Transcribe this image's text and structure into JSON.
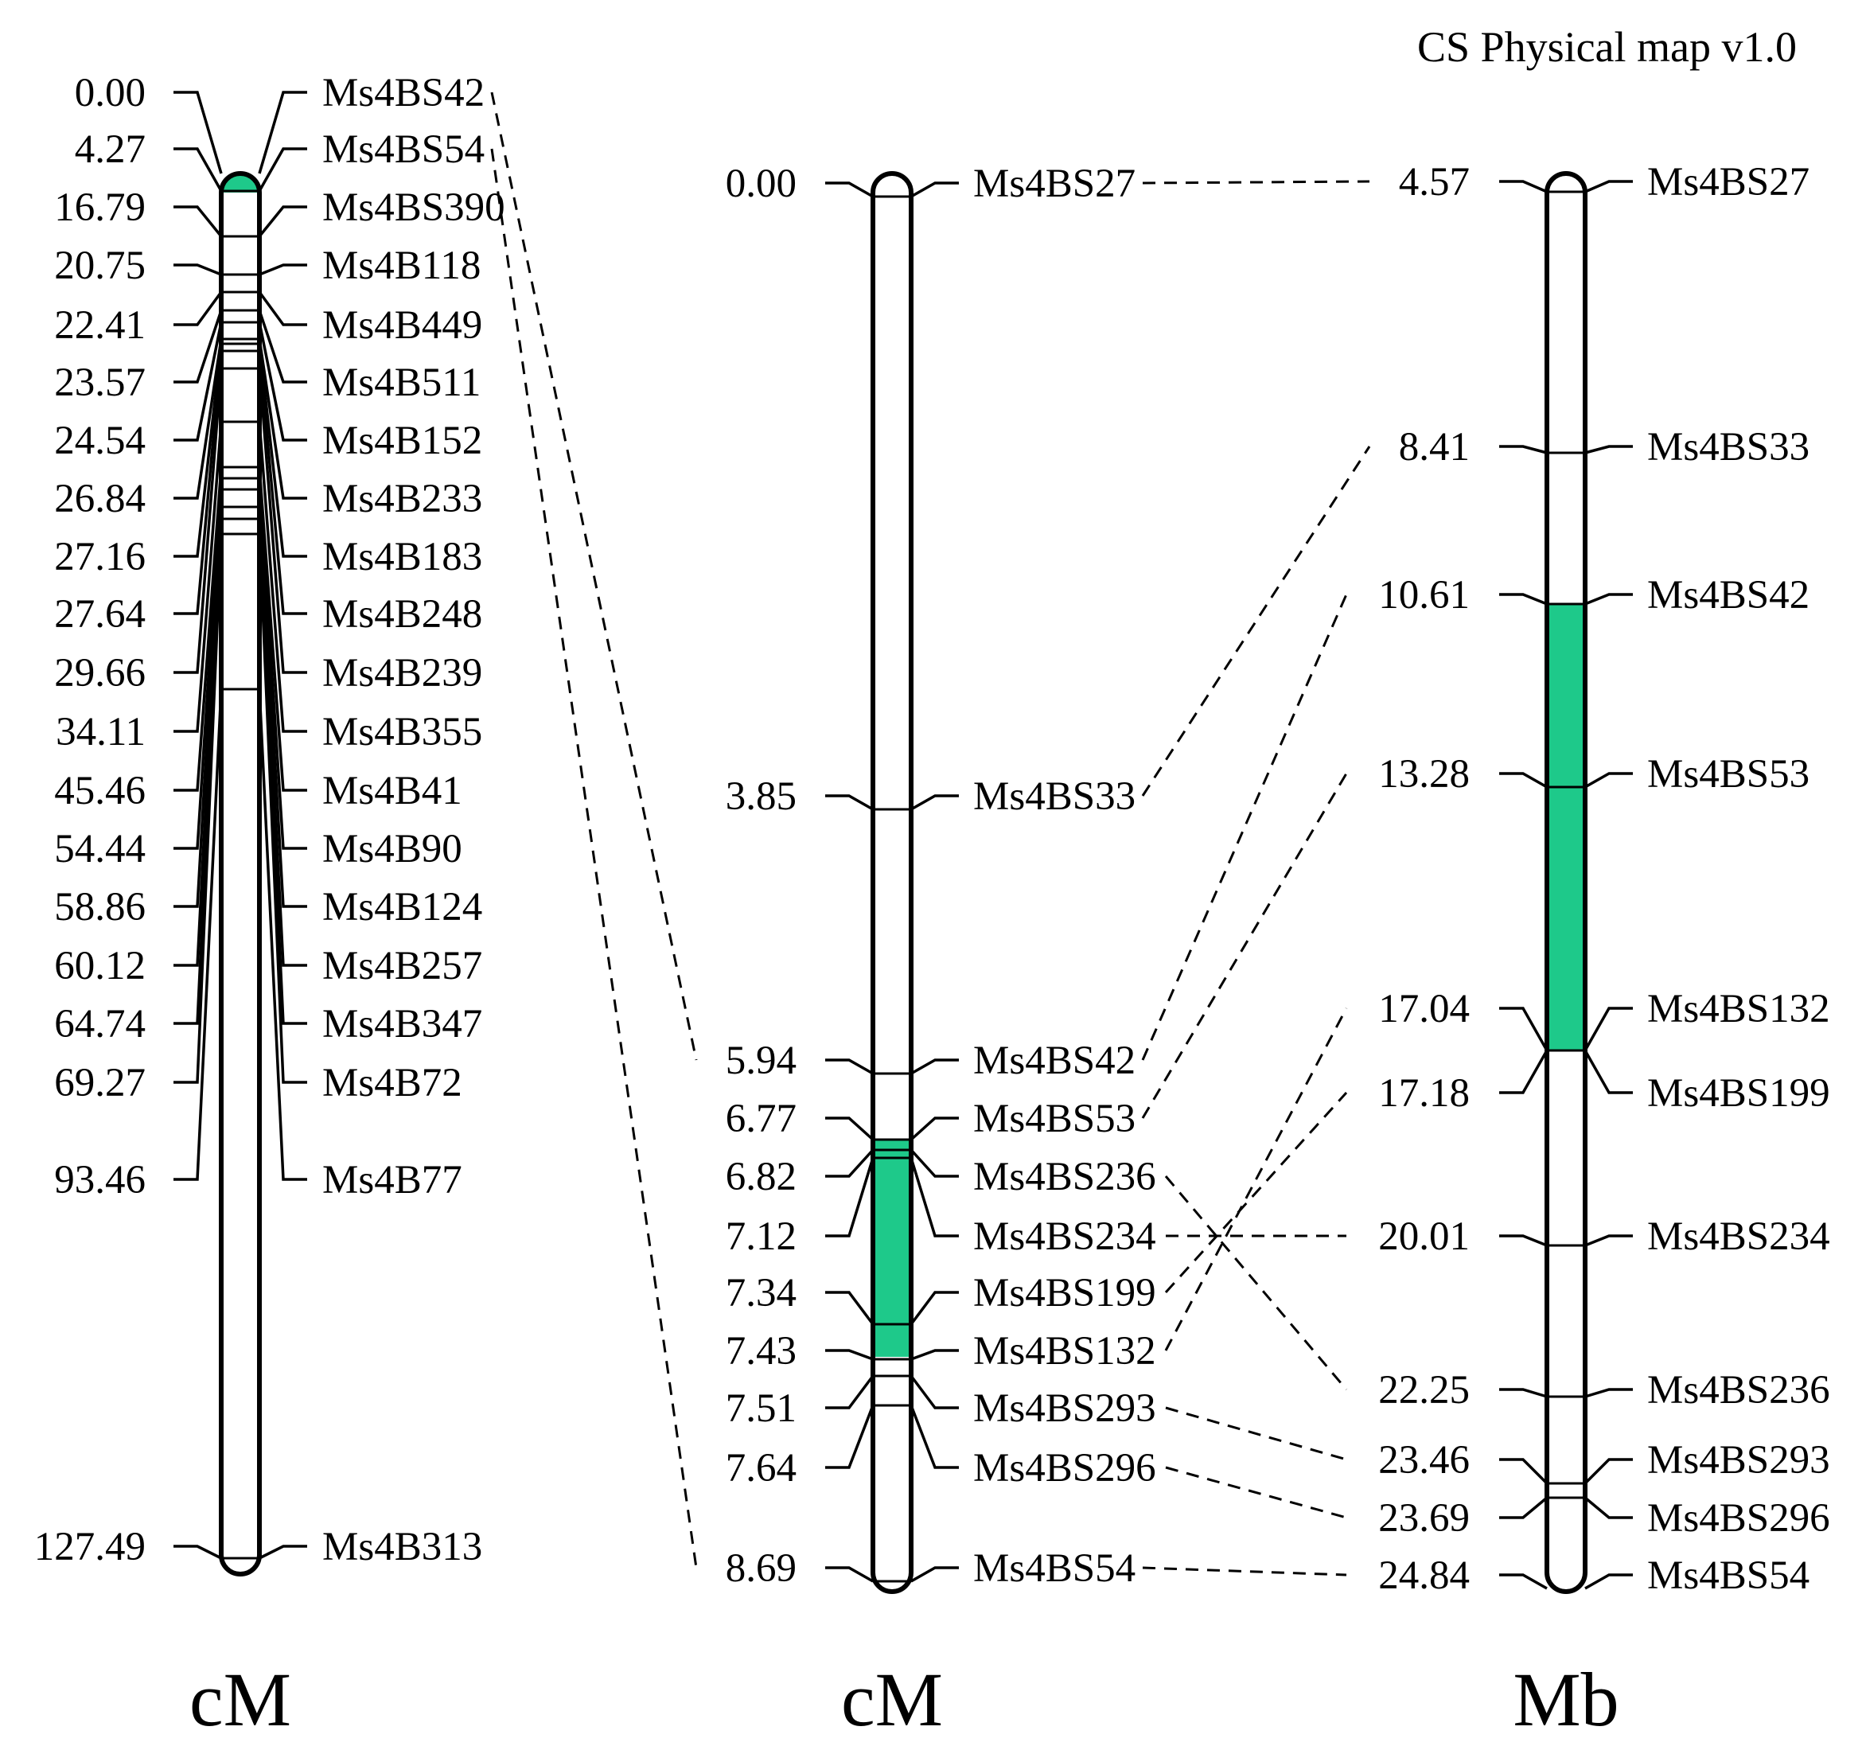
{
  "title": "CS Physical map v1.0",
  "highlight_color": "#1ec98a",
  "maps": [
    {
      "id": "map1",
      "unit": "cM",
      "markers": [
        {
          "pos": "0.00",
          "name": "Ms4BS42"
        },
        {
          "pos": "4.27",
          "name": "Ms4BS54"
        },
        {
          "pos": "16.79",
          "name": "Ms4BS390"
        },
        {
          "pos": "20.75",
          "name": "Ms4B118"
        },
        {
          "pos": "22.41",
          "name": "Ms4B449"
        },
        {
          "pos": "23.57",
          "name": "Ms4B511"
        },
        {
          "pos": "24.54",
          "name": "Ms4B152"
        },
        {
          "pos": "26.84",
          "name": "Ms4B233"
        },
        {
          "pos": "27.16",
          "name": "Ms4B183"
        },
        {
          "pos": "27.64",
          "name": "Ms4B248"
        },
        {
          "pos": "29.66",
          "name": "Ms4B239"
        },
        {
          "pos": "34.11",
          "name": "Ms4B355"
        },
        {
          "pos": "45.46",
          "name": "Ms4B41"
        },
        {
          "pos": "54.44",
          "name": "Ms4B90"
        },
        {
          "pos": "58.86",
          "name": "Ms4B124"
        },
        {
          "pos": "60.12",
          "name": "Ms4B257"
        },
        {
          "pos": "64.74",
          "name": "Ms4B347"
        },
        {
          "pos": "69.27",
          "name": "Ms4B72"
        },
        {
          "pos": "93.46",
          "name": "Ms4B77"
        },
        {
          "pos": "127.49",
          "name": "Ms4B313"
        }
      ],
      "highlight": {
        "from": "0.00",
        "to": "4.27"
      }
    },
    {
      "id": "map2",
      "unit": "cM",
      "markers": [
        {
          "pos": "0.00",
          "name": "Ms4BS27"
        },
        {
          "pos": "3.85",
          "name": "Ms4BS33"
        },
        {
          "pos": "5.94",
          "name": "Ms4BS42"
        },
        {
          "pos": "6.77",
          "name": "Ms4BS53"
        },
        {
          "pos": "6.82",
          "name": "Ms4BS236"
        },
        {
          "pos": "7.12",
          "name": "Ms4BS234"
        },
        {
          "pos": "7.34",
          "name": "Ms4BS199"
        },
        {
          "pos": "7.43",
          "name": "Ms4BS132"
        },
        {
          "pos": "7.51",
          "name": "Ms4BS293"
        },
        {
          "pos": "7.64",
          "name": "Ms4BS296"
        },
        {
          "pos": "8.69",
          "name": "Ms4BS54"
        }
      ],
      "highlight": {
        "from": "Ms4BS42",
        "to": "Ms4BS132"
      }
    },
    {
      "id": "map3",
      "unit": "Mb",
      "markers": [
        {
          "pos": "4.57",
          "name": "Ms4BS27"
        },
        {
          "pos": "8.41",
          "name": "Ms4BS33"
        },
        {
          "pos": "10.61",
          "name": "Ms4BS42"
        },
        {
          "pos": "13.28",
          "name": "Ms4BS53"
        },
        {
          "pos": "17.04",
          "name": "Ms4BS132"
        },
        {
          "pos": "17.18",
          "name": "Ms4BS199"
        },
        {
          "pos": "20.01",
          "name": "Ms4BS234"
        },
        {
          "pos": "22.25",
          "name": "Ms4BS236"
        },
        {
          "pos": "23.46",
          "name": "Ms4BS293"
        },
        {
          "pos": "23.69",
          "name": "Ms4BS296"
        },
        {
          "pos": "24.84",
          "name": "Ms4BS54"
        }
      ],
      "highlight": {
        "from": "Ms4BS42",
        "to": "Ms4BS132"
      }
    }
  ],
  "connections": [
    {
      "from_map": "map1",
      "to_map": "map2",
      "marker": "Ms4BS42"
    },
    {
      "from_map": "map1",
      "to_map": "map2",
      "marker": "Ms4BS54"
    },
    {
      "from_map": "map2",
      "to_map": "map3",
      "marker": "Ms4BS27"
    },
    {
      "from_map": "map2",
      "to_map": "map3",
      "marker": "Ms4BS33"
    },
    {
      "from_map": "map2",
      "to_map": "map3",
      "marker": "Ms4BS42"
    },
    {
      "from_map": "map2",
      "to_map": "map3",
      "marker": "Ms4BS53"
    },
    {
      "from_map": "map2",
      "to_map": "map3",
      "marker": "Ms4BS236"
    },
    {
      "from_map": "map2",
      "to_map": "map3",
      "marker": "Ms4BS234"
    },
    {
      "from_map": "map2",
      "to_map": "map3",
      "marker": "Ms4BS199"
    },
    {
      "from_map": "map2",
      "to_map": "map3",
      "marker": "Ms4BS132"
    },
    {
      "from_map": "map2",
      "to_map": "map3",
      "marker": "Ms4BS293"
    },
    {
      "from_map": "map2",
      "to_map": "map3",
      "marker": "Ms4BS296"
    },
    {
      "from_map": "map2",
      "to_map": "map3",
      "marker": "Ms4BS54"
    }
  ]
}
